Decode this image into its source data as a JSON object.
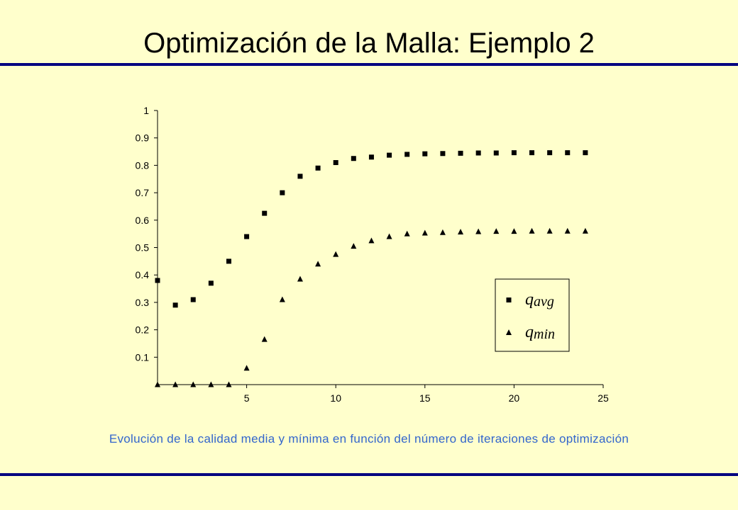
{
  "slide": {
    "title": "Optimización de la Malla: Ejemplo 2",
    "caption": "Evolución de la calidad media y mínima en función del número de iteraciones de optimización"
  },
  "colors": {
    "background": "#FFFFCC",
    "rule": "#000080",
    "caption": "#3366CC",
    "markers": "#000000"
  },
  "chart_data": {
    "type": "scatter",
    "title": "",
    "xlabel": "",
    "ylabel": "",
    "xlim": [
      0,
      25
    ],
    "ylim": [
      0,
      1
    ],
    "xticks": [
      5,
      10,
      15,
      20,
      25
    ],
    "yticks": [
      0.1,
      0.2,
      0.3,
      0.4,
      0.5,
      0.6,
      0.7,
      0.8,
      0.9,
      1
    ],
    "ytick_labels": [
      "0.1",
      "0.2",
      "0.3",
      "0.4",
      "0.5",
      "0.6",
      "0.7",
      "0.8",
      "0.9",
      "1"
    ],
    "grid": false,
    "legend_position": "bottom-right",
    "series": [
      {
        "name": "q_avg",
        "legend_base": "q",
        "legend_sub": "avg",
        "marker": "square",
        "x": [
          0,
          1,
          2,
          3,
          4,
          5,
          6,
          7,
          8,
          9,
          10,
          11,
          12,
          13,
          14,
          15,
          16,
          17,
          18,
          19,
          20,
          21,
          22,
          23,
          24
        ],
        "y": [
          0.38,
          0.29,
          0.31,
          0.37,
          0.45,
          0.54,
          0.625,
          0.7,
          0.76,
          0.79,
          0.81,
          0.825,
          0.83,
          0.837,
          0.84,
          0.842,
          0.843,
          0.844,
          0.845,
          0.845,
          0.846,
          0.846,
          0.846,
          0.846,
          0.846
        ]
      },
      {
        "name": "q_min",
        "legend_base": "q",
        "legend_sub": "min",
        "marker": "triangle",
        "x": [
          0,
          1,
          2,
          3,
          4,
          5,
          6,
          7,
          8,
          9,
          10,
          11,
          12,
          13,
          14,
          15,
          16,
          17,
          18,
          19,
          20,
          21,
          22,
          23,
          24
        ],
        "y": [
          0,
          0,
          0,
          0,
          0,
          0.06,
          0.165,
          0.31,
          0.385,
          0.44,
          0.475,
          0.505,
          0.525,
          0.54,
          0.55,
          0.553,
          0.555,
          0.557,
          0.558,
          0.559,
          0.559,
          0.56,
          0.56,
          0.56,
          0.56
        ]
      }
    ]
  }
}
